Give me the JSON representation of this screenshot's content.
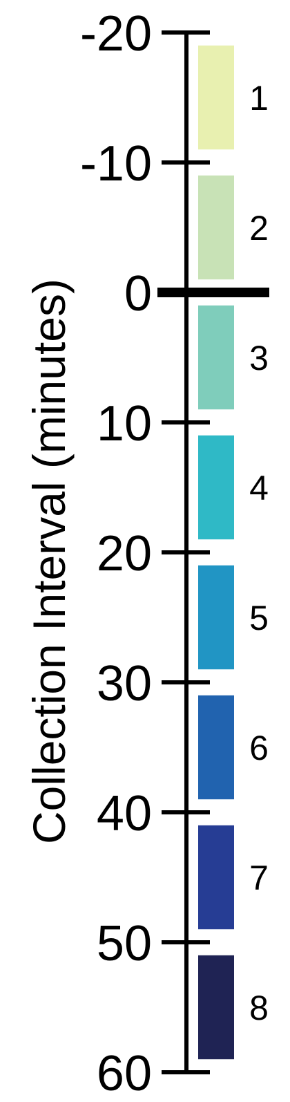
{
  "chart_data": {
    "type": "bar",
    "orientation": "vertical-timeline",
    "ylabel": "Collection Interval (minutes)",
    "ylim": [
      -20,
      60
    ],
    "ticks": [
      -20,
      -10,
      0,
      10,
      20,
      30,
      40,
      50,
      60
    ],
    "tick_labels": [
      "-20",
      "-10",
      "0",
      "10",
      "20",
      "30",
      "40",
      "50",
      "60"
    ],
    "emphasized_tick": 0,
    "grid": false,
    "intervals": [
      {
        "label": "1",
        "start": -19,
        "end": -11,
        "color": "#e8f0b0"
      },
      {
        "label": "2",
        "start": -9,
        "end": -1,
        "color": "#c8e2b6"
      },
      {
        "label": "3",
        "start": 1,
        "end": 9,
        "color": "#7fcdbb"
      },
      {
        "label": "4",
        "start": 11,
        "end": 19,
        "color": "#2fb9c6"
      },
      {
        "label": "5",
        "start": 21,
        "end": 29,
        "color": "#2195c4"
      },
      {
        "label": "6",
        "start": 31,
        "end": 39,
        "color": "#2163af"
      },
      {
        "label": "7",
        "start": 41,
        "end": 49,
        "color": "#263d94"
      },
      {
        "label": "8",
        "start": 51,
        "end": 59,
        "color": "#1f2354"
      }
    ]
  }
}
